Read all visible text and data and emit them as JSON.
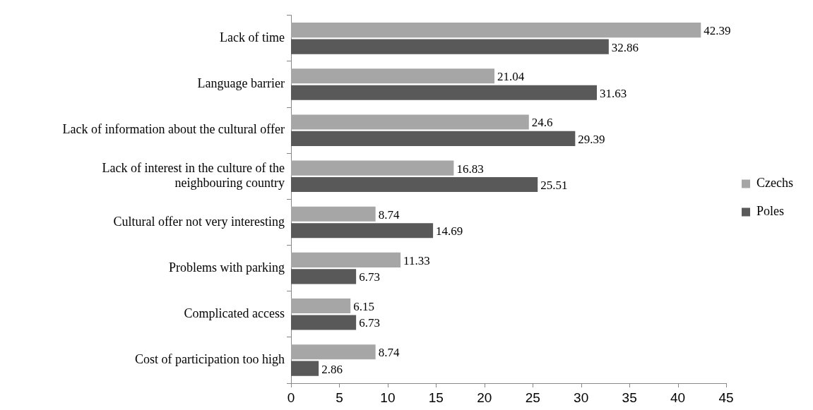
{
  "chart_data": {
    "type": "bar",
    "orientation": "horizontal",
    "categories": [
      "Lack of time",
      "Language barrier",
      "Lack of information about the cultural offer",
      "Lack of interest in the culture of the neighbouring country",
      "Cultural offer not very interesting",
      "Problems with parking",
      "Complicated access",
      "Cost of participation too high"
    ],
    "series": [
      {
        "name": "Czechs",
        "color": "#a6a6a6",
        "values": [
          42.39,
          21.04,
          24.6,
          16.83,
          8.74,
          11.33,
          6.15,
          8.74
        ]
      },
      {
        "name": "Poles",
        "color": "#595959",
        "values": [
          32.86,
          31.63,
          29.39,
          25.51,
          14.69,
          6.73,
          6.73,
          2.86
        ]
      }
    ],
    "xlim": [
      0,
      45
    ],
    "xticks": [
      0,
      5,
      10,
      15,
      20,
      25,
      30,
      35,
      40,
      45
    ],
    "data_labels": true,
    "grid": false,
    "legend": "right"
  }
}
